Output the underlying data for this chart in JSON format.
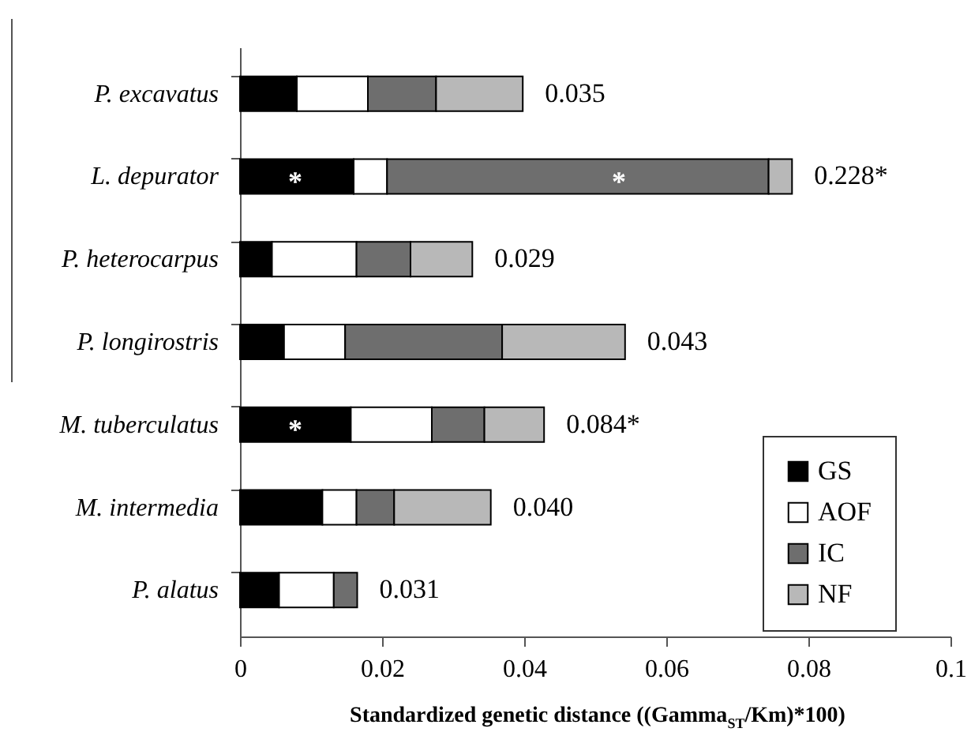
{
  "chart_data": {
    "type": "bar",
    "orientation": "horizontal",
    "stacked": true,
    "categories": [
      "P. excavatus",
      "L. depurator",
      "P. heterocarpus",
      "P. longirostris",
      "M. tuberculatus",
      "M. intermedia",
      "P. alatus"
    ],
    "series": [
      {
        "name": "GS",
        "color": "#000000",
        "values": [
          0.008,
          0.016,
          0.0045,
          0.0062,
          0.0156,
          0.0116,
          0.0055
        ]
      },
      {
        "name": "AOF",
        "color": "#ffffff",
        "values": [
          0.01,
          0.0047,
          0.0119,
          0.0086,
          0.0114,
          0.0048,
          0.0077
        ]
      },
      {
        "name": "IC",
        "color": "#6e6e6e",
        "values": [
          0.0096,
          0.0537,
          0.0076,
          0.0221,
          0.0074,
          0.0053,
          0.0033
        ]
      },
      {
        "name": "NF",
        "color": "#b8b8b8",
        "values": [
          0.0122,
          0.0033,
          0.0087,
          0.0173,
          0.0084,
          0.0136,
          null
        ]
      }
    ],
    "annotations": [
      {
        "text": "0.035",
        "x": 0.0398,
        "y": "P. excavatus"
      },
      {
        "text": "0.228*",
        "x": 0.0777,
        "y": "L. depurator"
      },
      {
        "text": "0.029",
        "x": 0.0327,
        "y": "P. heterocarpus"
      },
      {
        "text": "0.043",
        "x": 0.0542,
        "y": "P. longirostris"
      },
      {
        "text": "0.084*",
        "x": 0.0428,
        "y": "M. tuberculatus"
      },
      {
        "text": "0.040",
        "x": 0.0353,
        "y": "M. intermedia"
      },
      {
        "text": "0.031",
        "x": 0.0165,
        "y": "P. alatus"
      },
      "*",
      "*",
      "*"
    ],
    "xlabel": "Standardized genetic distance ((Gamma$_{ST}$/Km)*100)",
    "xlim": [
      0,
      0.1
    ],
    "xticks": [
      0,
      0.02,
      0.04,
      0.06,
      0.08,
      0.1
    ],
    "legend": "bottom right",
    "grid": false
  }
}
